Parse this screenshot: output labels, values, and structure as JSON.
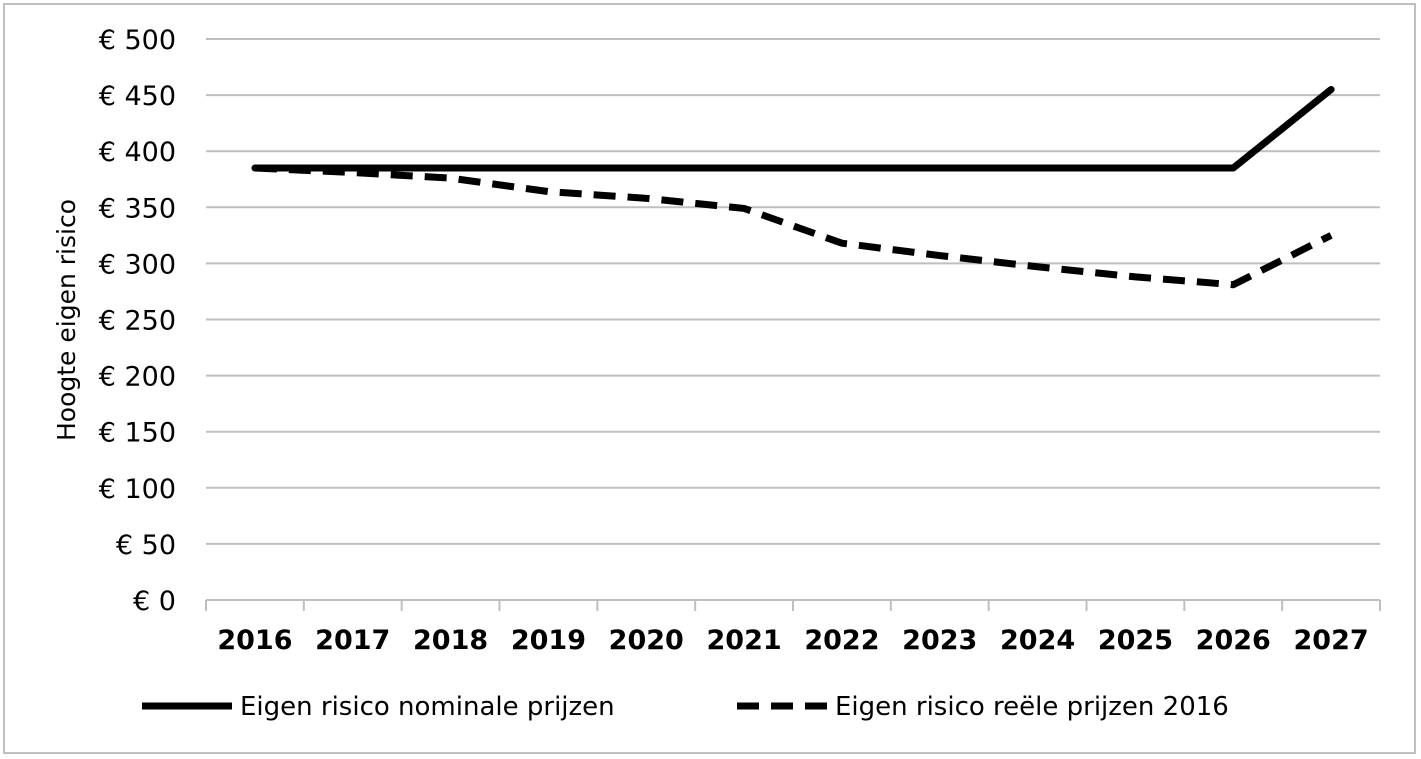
{
  "chart_data": {
    "type": "line",
    "title": "",
    "xlabel": "",
    "ylabel": "Hoogte eigen risico",
    "categories": [
      "2016",
      "2017",
      "2018",
      "2019",
      "2020",
      "2021",
      "2022",
      "2023",
      "2024",
      "2025",
      "2026",
      "2027"
    ],
    "y_ticks": [
      "€ 0",
      "€ 50",
      "€ 100",
      "€ 150",
      "€ 200",
      "€ 250",
      "€ 300",
      "€ 350",
      "€ 400",
      "€ 450",
      "€ 500"
    ],
    "ylim": [
      0,
      500
    ],
    "grid": "horizontal",
    "legend_position": "bottom",
    "series": [
      {
        "name": "Eigen risico nominale prijzen",
        "style": "solid",
        "color": "#000000",
        "values": [
          385,
          385,
          385,
          385,
          385,
          385,
          385,
          385,
          385,
          385,
          385,
          455
        ]
      },
      {
        "name": "Eigen risico reële prijzen 2016",
        "style": "dashed",
        "color": "#000000",
        "values": [
          385,
          381,
          376,
          364,
          358,
          349,
          318,
          307,
          297,
          288,
          281,
          325
        ]
      }
    ]
  }
}
